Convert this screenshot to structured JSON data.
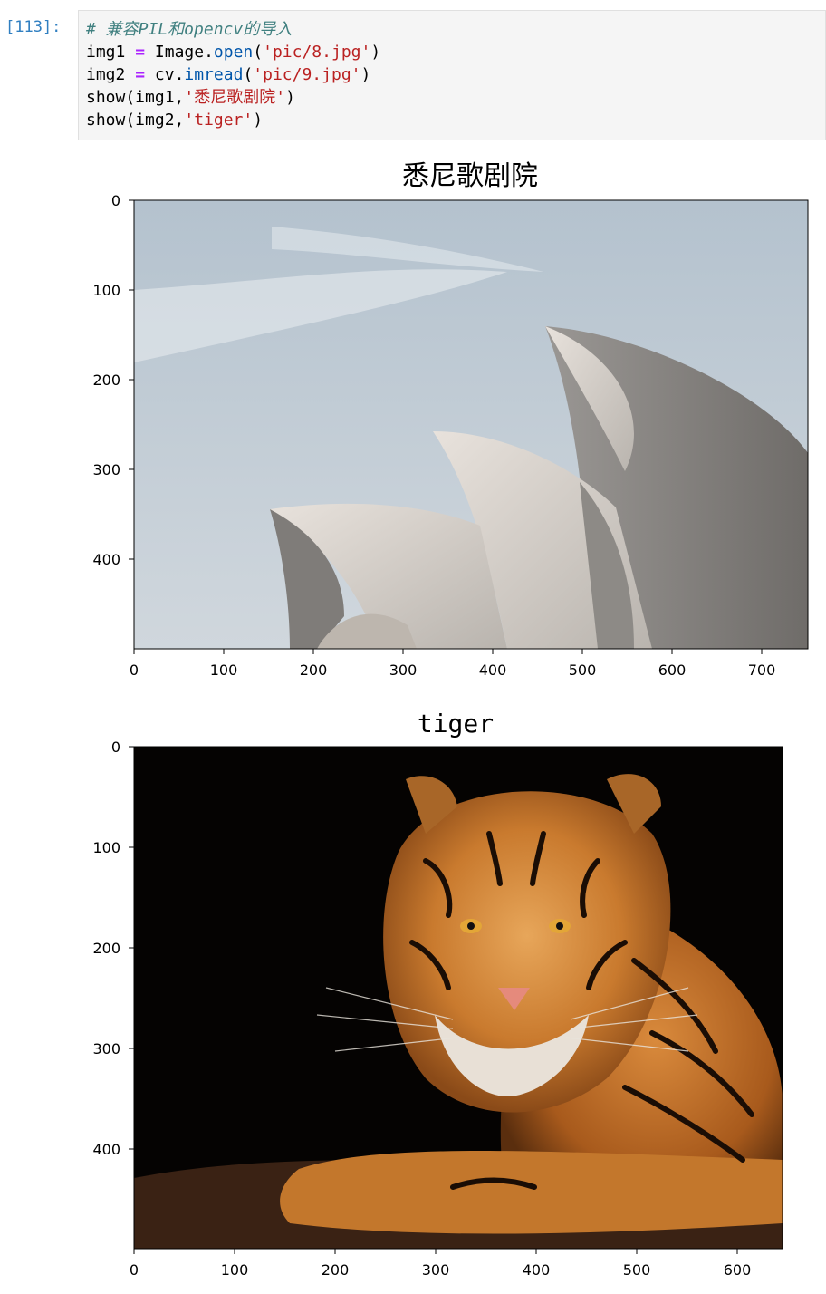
{
  "cell": {
    "prompt": "[113]:",
    "comment": "# 兼容PIL和opencv的导入",
    "lines": [
      {
        "var": "img1",
        "op": "=",
        "obj": "Image.",
        "fn": "open",
        "open_paren": "(",
        "str": "'pic/8.jpg'",
        "close_paren": ")"
      },
      {
        "var": "img2",
        "op": "=",
        "obj": "cv.",
        "fn": "imread",
        "open_paren": "(",
        "str": "'pic/9.jpg'",
        "close_paren": ")"
      },
      {
        "prefix": "show(img1,",
        "str": "'悉尼歌剧院'",
        "suffix": ")"
      },
      {
        "prefix": "show(img2,",
        "str": "'tiger'",
        "suffix": ")"
      }
    ]
  },
  "figures": [
    {
      "title": "悉尼歌剧院",
      "image_icon": "sydney-opera-house-photo",
      "x_ticks": [
        "0",
        "100",
        "200",
        "300",
        "400",
        "500",
        "600",
        "700"
      ],
      "y_ticks": [
        "0",
        "100",
        "200",
        "300",
        "400"
      ]
    },
    {
      "title": "tiger",
      "image_icon": "tiger-photo",
      "x_ticks": [
        "0",
        "100",
        "200",
        "300",
        "400",
        "500",
        "600"
      ],
      "y_ticks": [
        "0",
        "100",
        "200",
        "300",
        "400"
      ]
    }
  ]
}
